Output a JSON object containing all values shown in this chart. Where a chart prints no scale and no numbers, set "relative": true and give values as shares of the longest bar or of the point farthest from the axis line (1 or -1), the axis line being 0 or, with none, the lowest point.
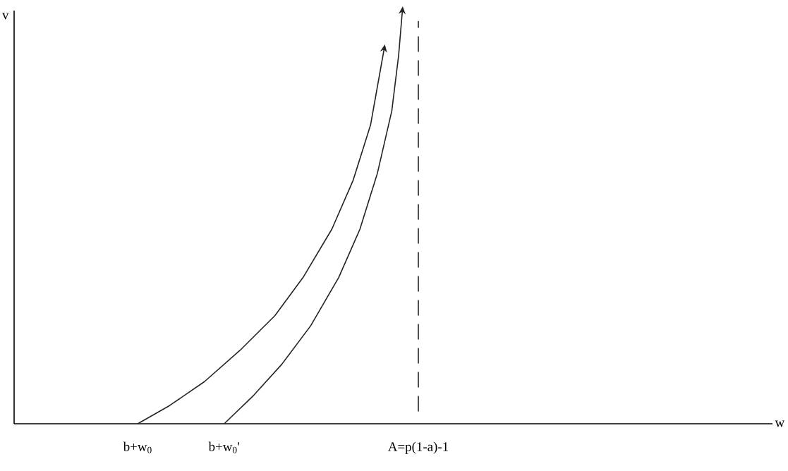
{
  "chart_data": {
    "type": "line",
    "relative": true,
    "xlabel": "w",
    "ylabel": "v",
    "xlim": [
      0,
      1
    ],
    "xticks": [
      {
        "value": 0.163,
        "label": "b+w$_{0}$"
      },
      {
        "value": 0.277,
        "label": "b+w$_{0}$'"
      },
      {
        "value": 0.533,
        "label": "A=p(1-a)-1"
      }
    ],
    "series": [
      {
        "color": "#222222",
        "x": [
          0.163,
          0.205,
          0.251,
          0.298,
          0.344,
          0.381,
          0.419,
          0.447,
          0.47,
          0.488
        ],
        "values": [
          0,
          0.044,
          0.102,
          0.178,
          0.262,
          0.354,
          0.471,
          0.589,
          0.723,
          0.908
        ]
      },
      {
        "color": "#222222",
        "x": [
          0.277,
          0.316,
          0.353,
          0.391,
          0.428,
          0.456,
          0.479,
          0.498,
          0.507,
          0.512
        ],
        "values": [
          0,
          0.069,
          0.144,
          0.237,
          0.354,
          0.471,
          0.606,
          0.757,
          0.891,
          1.0
        ]
      }
    ],
    "ref_lines": [
      {
        "axis": "x",
        "value": 0.533,
        "color": "#222222",
        "line_style": "dashed"
      }
    ],
    "grid": false,
    "marker": "none",
    "line_style": "solid"
  }
}
